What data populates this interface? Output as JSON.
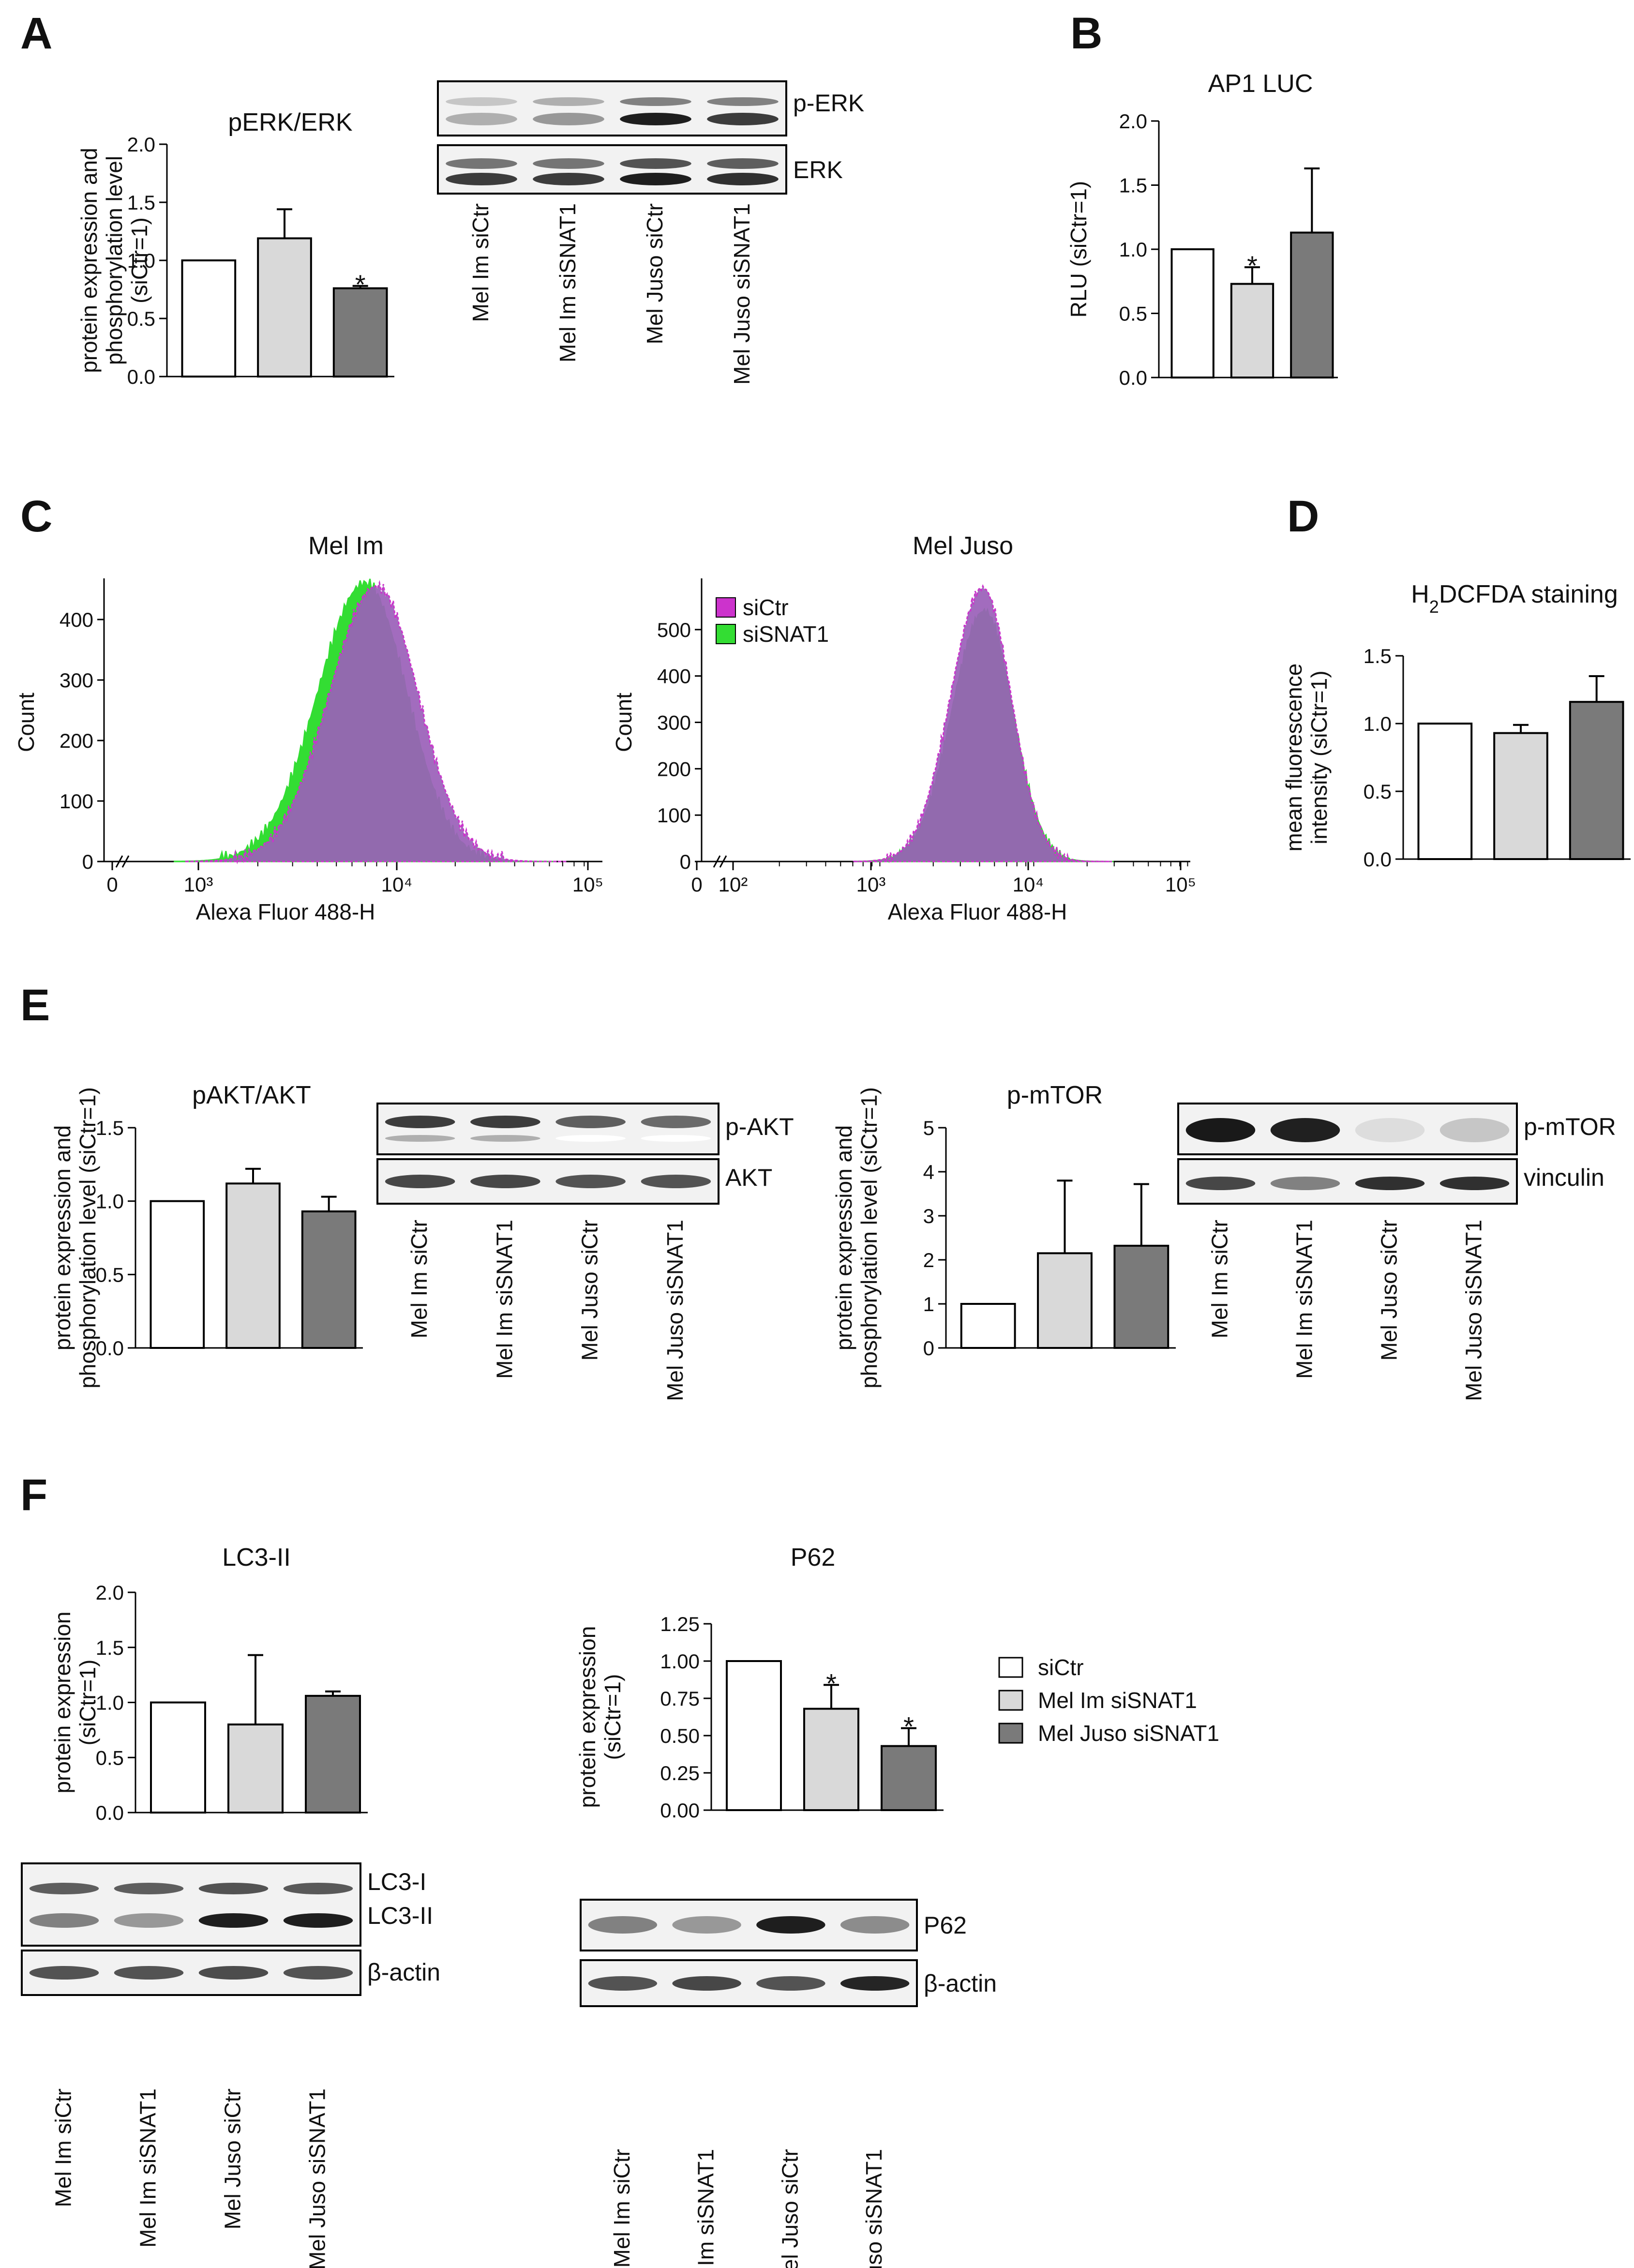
{
  "colors": {
    "siCtr": "#ffffff",
    "mel_im_siSNAT1": "#d9d9d9",
    "mel_juso_siSNAT1": "#7a7a7a",
    "flow_siCtr": "#cc33cc",
    "flow_siCtr_fill": "#9a5fb8",
    "flow_siSNAT1": "#33dd33",
    "axis": "#000000"
  },
  "panels": {
    "A": "A",
    "B": "B",
    "C": "C",
    "D": "D",
    "E": "E",
    "F": "F"
  },
  "lane_labels": [
    "Mel Im siCtr",
    "Mel Im siSNAT1",
    "Mel Juso siCtr",
    "Mel Juso siSNAT1"
  ],
  "legend": {
    "items": [
      "siCtr",
      "Mel Im siSNAT1",
      "Mel Juso siSNAT1"
    ]
  },
  "blots": {
    "A": [
      "p-ERK",
      "ERK"
    ],
    "E1": [
      "p-AKT",
      "AKT"
    ],
    "E2": [
      "p-mTOR",
      "vinculin"
    ],
    "F1": [
      "LC3-I",
      "LC3-II",
      "β-actin"
    ],
    "F2": [
      "P62",
      "β-actin"
    ]
  },
  "chart_data": [
    {
      "id": "A",
      "type": "bar",
      "title": "pERK/ERK",
      "ylabel_lines": [
        "protein expression and",
        "phosphorylation level",
        "(siCtr=1)"
      ],
      "ylim": [
        0,
        2.0
      ],
      "yticks": [
        0.0,
        0.5,
        1.0,
        1.5,
        2.0
      ],
      "tick_decimals": 1,
      "values": [
        1.0,
        1.19,
        0.76
      ],
      "errors": [
        0,
        0.25,
        0.02
      ],
      "stars": [
        false,
        false,
        true
      ]
    },
    {
      "id": "B",
      "type": "bar",
      "title": "AP1 LUC",
      "ylabel_lines": [
        "RLU (siCtr=1)"
      ],
      "ylim": [
        0,
        2.0
      ],
      "yticks": [
        0.0,
        0.5,
        1.0,
        1.5,
        2.0
      ],
      "tick_decimals": 1,
      "values": [
        1.0,
        0.73,
        1.13
      ],
      "errors": [
        0,
        0.13,
        0.5
      ],
      "stars": [
        false,
        true,
        false
      ]
    },
    {
      "id": "D",
      "type": "bar",
      "title": "H2DCFDA staining",
      "ylabel_lines": [
        "mean fluorescence",
        "intensity (siCtr=1)"
      ],
      "ylim": [
        0,
        1.5
      ],
      "yticks": [
        0.0,
        0.5,
        1.0,
        1.5
      ],
      "tick_decimals": 1,
      "values": [
        1.0,
        0.93,
        1.16
      ],
      "errors": [
        0,
        0.06,
        0.19
      ],
      "stars": [
        false,
        false,
        false
      ]
    },
    {
      "id": "E1",
      "type": "bar",
      "title": "pAKT/AKT",
      "ylabel_lines": [
        "protein expression and",
        "phosphorylation level (siCtr=1)"
      ],
      "ylim": [
        0,
        1.5
      ],
      "yticks": [
        0.0,
        0.5,
        1.0,
        1.5
      ],
      "tick_decimals": 1,
      "values": [
        1.0,
        1.12,
        0.93
      ],
      "errors": [
        0,
        0.1,
        0.1
      ],
      "stars": [
        false,
        false,
        false
      ]
    },
    {
      "id": "E2",
      "type": "bar",
      "title": "p-mTOR",
      "ylabel_lines": [
        "protein expression and",
        "phosphorylation level (siCtr=1)"
      ],
      "ylim": [
        0,
        5
      ],
      "yticks": [
        0,
        1,
        2,
        3,
        4,
        5
      ],
      "tick_decimals": 0,
      "values": [
        1.0,
        2.15,
        2.32
      ],
      "errors": [
        0,
        1.65,
        1.4
      ],
      "stars": [
        false,
        false,
        false
      ]
    },
    {
      "id": "F1",
      "type": "bar",
      "title": "LC3-II",
      "ylabel_lines": [
        "protein expression",
        "(siCtr=1)"
      ],
      "ylim": [
        0,
        2.0
      ],
      "yticks": [
        0.0,
        0.5,
        1.0,
        1.5,
        2.0
      ],
      "tick_decimals": 1,
      "values": [
        1.0,
        0.8,
        1.06
      ],
      "errors": [
        0,
        0.63,
        0.04
      ],
      "stars": [
        false,
        false,
        false
      ]
    },
    {
      "id": "F2",
      "type": "bar",
      "title": "P62",
      "ylabel_lines": [
        "protein expression",
        "(siCtr=1)"
      ],
      "ylim": [
        0,
        1.25
      ],
      "yticks": [
        0.0,
        0.25,
        0.5,
        0.75,
        1.0,
        1.25
      ],
      "tick_decimals": 2,
      "values": [
        1.0,
        0.68,
        0.43
      ],
      "errors": [
        0,
        0.16,
        0.12
      ],
      "stars": [
        false,
        true,
        true
      ]
    },
    {
      "id": "C1",
      "type": "area",
      "title": "Mel Im",
      "xlabel": "Alexa Fluor 488-H",
      "ylabel": "Count",
      "xscale": "log",
      "ylim": [
        0,
        460
      ],
      "yticks": [
        0,
        100,
        200,
        300,
        400
      ],
      "xticks": [
        "0",
        "10³",
        "10⁴",
        "10⁵"
      ],
      "series": [
        {
          "name": "siCtr",
          "peak_x": 8000,
          "peak": 455
        },
        {
          "name": "siSNAT1",
          "peak_x": 7000,
          "peak": 460
        }
      ]
    },
    {
      "id": "C2",
      "type": "area",
      "title": "Mel Juso",
      "xlabel": "Alexa Fluor 488-H",
      "ylabel": "Count",
      "xscale": "log",
      "ylim": [
        0,
        600
      ],
      "yticks": [
        0,
        100,
        200,
        300,
        400,
        500
      ],
      "xticks": [
        "0",
        "10²",
        "10³",
        "10⁴",
        "10⁵"
      ],
      "legend": [
        "siCtr",
        "siSNAT1"
      ],
      "series": [
        {
          "name": "siCtr",
          "peak_x": 4200,
          "peak": 590
        },
        {
          "name": "siSNAT1",
          "peak_x": 4300,
          "peak": 540
        }
      ]
    }
  ]
}
